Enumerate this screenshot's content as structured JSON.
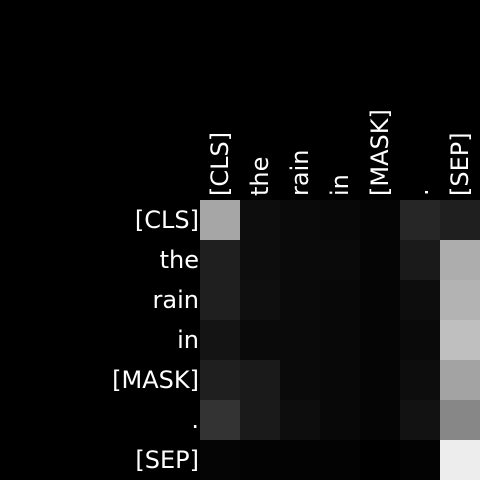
{
  "chart_data": {
    "type": "heatmap",
    "title": "",
    "xlabel": "",
    "ylabel": "",
    "x_tokens": [
      "[CLS]",
      "the",
      "rain",
      "in",
      "[MASK]",
      ".",
      "[SEP]"
    ],
    "y_tokens": [
      "[CLS]",
      "the",
      "rain",
      "in",
      "[MASK]",
      ".",
      "[SEP]"
    ],
    "colormap": "gray",
    "value_range": [
      0,
      1
    ],
    "values": [
      [
        0.65,
        0.05,
        0.04,
        0.03,
        0.02,
        0.15,
        0.12
      ],
      [
        0.12,
        0.05,
        0.04,
        0.04,
        0.02,
        0.1,
        0.68
      ],
      [
        0.12,
        0.06,
        0.04,
        0.03,
        0.02,
        0.05,
        0.7
      ],
      [
        0.08,
        0.04,
        0.04,
        0.03,
        0.02,
        0.04,
        0.75
      ],
      [
        0.12,
        0.1,
        0.04,
        0.03,
        0.02,
        0.05,
        0.64
      ],
      [
        0.2,
        0.1,
        0.05,
        0.03,
        0.02,
        0.07,
        0.53
      ],
      [
        0.02,
        0.01,
        0.01,
        0.01,
        0.0,
        0.01,
        0.93
      ]
    ]
  }
}
